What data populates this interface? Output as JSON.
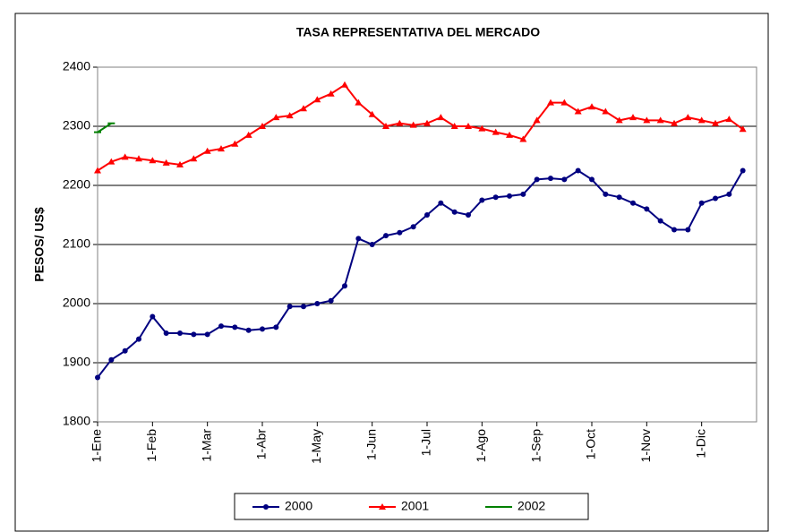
{
  "chart_data": {
    "type": "line",
    "title": "TASA REPRESENTATIVA DEL MERCADO",
    "y_label": "PESOS/ US$",
    "categories": [
      "1-Ene",
      null,
      null,
      null,
      "1-Feb",
      null,
      null,
      null,
      "1-Mar",
      null,
      null,
      null,
      "1-Abr",
      null,
      null,
      null,
      "1-May",
      null,
      null,
      null,
      "1-Jun",
      null,
      null,
      null,
      "1-Jul",
      null,
      null,
      null,
      "1-Ago",
      null,
      null,
      null,
      "1-Sep",
      null,
      null,
      null,
      "1-Oct",
      null,
      null,
      null,
      "1-Nov",
      null,
      null,
      null,
      "1-Dic",
      null,
      null,
      null
    ],
    "series": [
      {
        "name": "2000",
        "color": "#000080",
        "marker": "circle",
        "values": [
          1875,
          1905,
          1920,
          1940,
          1978,
          1950,
          1950,
          1948,
          1948,
          1962,
          1960,
          1955,
          1957,
          1960,
          1995,
          1995,
          2000,
          2005,
          2030,
          2110,
          2100,
          2115,
          2120,
          2130,
          2150,
          2170,
          2155,
          2150,
          2175,
          2180,
          2182,
          2185,
          2210,
          2212,
          2210,
          2225,
          2210,
          2185,
          2180,
          2170,
          2160,
          2140,
          2125,
          2125,
          2170,
          2178,
          2185,
          2225
        ]
      },
      {
        "name": "2001",
        "color": "#ff0000",
        "marker": "triangle",
        "values": [
          2225,
          2240,
          2248,
          2245,
          2242,
          2238,
          2235,
          2245,
          2258,
          2262,
          2270,
          2285,
          2300,
          2315,
          2318,
          2330,
          2345,
          2355,
          2370,
          2340,
          2320,
          2300,
          2305,
          2302,
          2305,
          2315,
          2300,
          2300,
          2296,
          2290,
          2285,
          2278,
          2310,
          2340,
          2340,
          2325,
          2333,
          2325,
          2310,
          2315,
          2310,
          2310,
          2305,
          2315,
          2310,
          2305,
          2312,
          2295
        ]
      },
      {
        "name": "2002",
        "color": "#008000",
        "marker": "dash",
        "values": [
          2290,
          2305,
          null,
          null,
          null,
          null,
          null,
          null,
          null,
          null,
          null,
          null,
          null,
          null,
          null,
          null,
          null,
          null,
          null,
          null,
          null,
          null,
          null,
          null,
          null,
          null,
          null,
          null,
          null,
          null,
          null,
          null,
          null,
          null,
          null,
          null,
          null,
          null,
          null,
          null,
          null,
          null,
          null,
          null,
          null,
          null,
          null,
          null
        ]
      }
    ],
    "ylim": [
      1800,
      2400
    ],
    "yticks": [
      1800,
      1900,
      2000,
      2100,
      2200,
      2300,
      2400
    ],
    "grid": true,
    "legend": "bottom"
  }
}
